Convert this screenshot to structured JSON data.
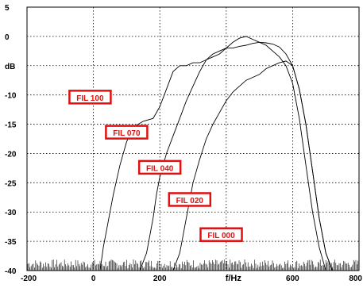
{
  "chart_data": {
    "type": "line",
    "xlabel": "f/Hz",
    "ylabel": "dB",
    "xlim": [
      -200,
      800
    ],
    "ylim": [
      -40,
      5
    ],
    "xticks": [
      -200,
      0,
      200,
      400,
      600,
      800
    ],
    "xtick_labels": [
      "-200",
      "0",
      "200",
      "",
      "600",
      "800"
    ],
    "yticks": [
      5,
      0,
      -5,
      -10,
      -15,
      -20,
      -25,
      -30,
      -35,
      -40
    ],
    "ytick_labels": [
      "5",
      "0",
      "dB",
      "-10",
      "-15",
      "-20",
      "-25",
      "-30",
      "-35",
      "-40"
    ],
    "grid": true,
    "series": [
      {
        "name": "FIL 100",
        "label_at": [
          -10,
          -10.5
        ],
        "x": [
          -200,
          20,
          30,
          40,
          50,
          60,
          80,
          100,
          120,
          150,
          180,
          200,
          220,
          240,
          260,
          280,
          300,
          320,
          340,
          360,
          380,
          400,
          420,
          440,
          460,
          480,
          500,
          520,
          540,
          560,
          580,
          600,
          620,
          640,
          660,
          680,
          700,
          720,
          740,
          800
        ],
        "y": [
          -40,
          -40,
          -36,
          -33,
          -30,
          -27,
          -22,
          -18,
          -15.5,
          -14.5,
          -14,
          -12,
          -9,
          -6,
          -5,
          -5,
          -4.5,
          -4.5,
          -4,
          -3.5,
          -3,
          -2,
          -1,
          -0.3,
          0,
          -0.5,
          -1,
          -1.5,
          -2.5,
          -3.5,
          -5,
          -8,
          -14,
          -22,
          -30,
          -36,
          -40,
          -40,
          -40,
          -40
        ]
      },
      {
        "name": "FIL 070",
        "label_at": [
          100,
          -16.5
        ],
        "x": [
          -200,
          140,
          160,
          170,
          180,
          190,
          200,
          220,
          240,
          260,
          280,
          300,
          320,
          340,
          360,
          380,
          400,
          420,
          440,
          460,
          480,
          500,
          520,
          540,
          560,
          580,
          600,
          620,
          640,
          660,
          680,
          700,
          720,
          800
        ],
        "y": [
          -40,
          -40,
          -37,
          -34,
          -31,
          -27,
          -24,
          -20,
          -17,
          -14,
          -11,
          -8.5,
          -6,
          -4,
          -3,
          -2.5,
          -2,
          -2,
          -1.7,
          -1.5,
          -1.2,
          -1,
          -1.1,
          -1.3,
          -1.8,
          -3,
          -5,
          -9,
          -15,
          -23,
          -31,
          -37,
          -40,
          -40
        ]
      },
      {
        "name": "FIL 040",
        "label_at": [
          200,
          -22.5
        ],
        "x": [
          -200,
          240,
          260,
          270,
          280,
          290,
          300,
          320,
          340,
          360,
          380,
          400,
          420,
          440,
          460,
          480,
          500,
          520,
          540,
          560,
          580,
          600,
          620,
          640,
          660,
          680,
          700,
          720,
          800
        ],
        "y": [
          -40,
          -40,
          -37,
          -34,
          -31,
          -28,
          -25,
          -21,
          -17.5,
          -15,
          -13,
          -11,
          -9.5,
          -8.5,
          -7.5,
          -7,
          -6.5,
          -5.5,
          -5,
          -4.5,
          -4.2,
          -5,
          -9,
          -15,
          -23,
          -31,
          -37,
          -40,
          -40
        ]
      },
      {
        "name": "FIL 020",
        "label_at": [
          290,
          -28
        ]
      },
      {
        "name": "FIL 000",
        "label_at": [
          385,
          -34
        ]
      }
    ]
  }
}
